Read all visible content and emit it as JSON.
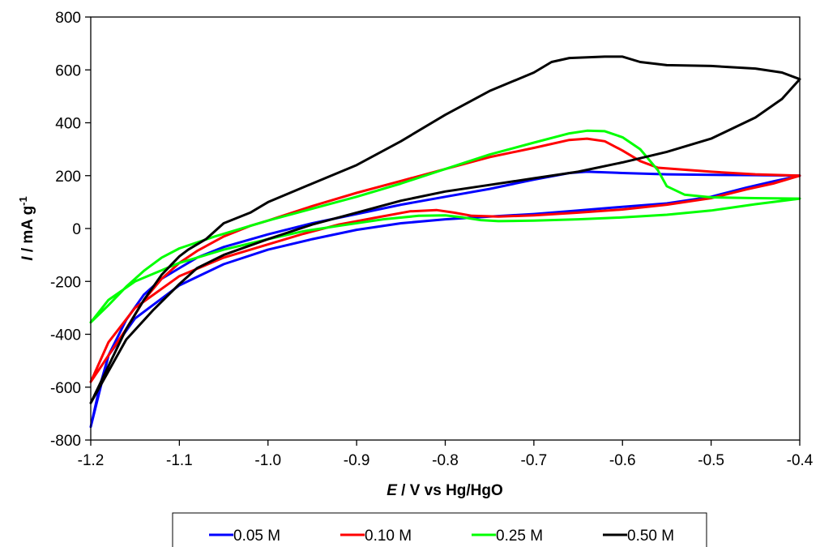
{
  "chart_data": {
    "type": "line",
    "xlabel_italic": "E",
    "xlabel_rest": " / V vs Hg/HgO",
    "ylabel_italic": "I",
    "ylabel_rest": " / mA g",
    "ylabel_sup": "-1",
    "xlim": [
      -1.2,
      -0.4
    ],
    "ylim": [
      -800,
      800
    ],
    "x_ticks": [
      -1.2,
      -1.1,
      -1.0,
      -0.9,
      -0.8,
      -0.7,
      -0.6,
      -0.5,
      -0.4
    ],
    "x_tick_labels": [
      "-1.2",
      "-1.1",
      "-1.0",
      "-0.9",
      "-0.8",
      "-0.7",
      "-0.6",
      "-0.5",
      "-0.4"
    ],
    "y_ticks": [
      -800,
      -600,
      -400,
      -200,
      0,
      200,
      400,
      600,
      800
    ],
    "y_tick_labels": [
      "-800",
      "-600",
      "-400",
      "-200",
      "0",
      "200",
      "400",
      "600",
      "800"
    ],
    "grid": false,
    "legend_position": "bottom",
    "series": [
      {
        "name": "0.05 M",
        "color": "#0000ff",
        "points": [
          [
            -1.2,
            -750
          ],
          [
            -1.19,
            -600
          ],
          [
            -1.18,
            -480
          ],
          [
            -1.16,
            -345
          ],
          [
            -1.14,
            -250
          ],
          [
            -1.12,
            -190
          ],
          [
            -1.1,
            -150
          ],
          [
            -1.08,
            -110
          ],
          [
            -1.05,
            -70
          ],
          [
            -1.0,
            -22
          ],
          [
            -0.95,
            20
          ],
          [
            -0.9,
            55
          ],
          [
            -0.85,
            90
          ],
          [
            -0.8,
            120
          ],
          [
            -0.75,
            150
          ],
          [
            -0.7,
            185
          ],
          [
            -0.66,
            210
          ],
          [
            -0.64,
            215
          ],
          [
            -0.6,
            210
          ],
          [
            -0.55,
            205
          ],
          [
            -0.5,
            203
          ],
          [
            -0.45,
            202
          ],
          [
            -0.4,
            200
          ],
          [
            -0.43,
            178
          ],
          [
            -0.46,
            155
          ],
          [
            -0.5,
            120
          ],
          [
            -0.55,
            95
          ],
          [
            -0.6,
            82
          ],
          [
            -0.65,
            68
          ],
          [
            -0.7,
            55
          ],
          [
            -0.75,
            45
          ],
          [
            -0.8,
            35
          ],
          [
            -0.85,
            20
          ],
          [
            -0.9,
            -5
          ],
          [
            -0.95,
            -40
          ],
          [
            -1.0,
            -80
          ],
          [
            -1.05,
            -135
          ],
          [
            -1.1,
            -215
          ],
          [
            -1.15,
            -340
          ],
          [
            -1.18,
            -480
          ],
          [
            -1.2,
            -750
          ]
        ]
      },
      {
        "name": "0.10 M",
        "color": "#ff0000",
        "points": [
          [
            -1.2,
            -580
          ],
          [
            -1.18,
            -480
          ],
          [
            -1.16,
            -380
          ],
          [
            -1.14,
            -270
          ],
          [
            -1.12,
            -190
          ],
          [
            -1.1,
            -130
          ],
          [
            -1.08,
            -85
          ],
          [
            -1.05,
            -30
          ],
          [
            -1.02,
            10
          ],
          [
            -1.0,
            30
          ],
          [
            -0.95,
            85
          ],
          [
            -0.9,
            135
          ],
          [
            -0.85,
            180
          ],
          [
            -0.8,
            225
          ],
          [
            -0.75,
            270
          ],
          [
            -0.7,
            305
          ],
          [
            -0.66,
            335
          ],
          [
            -0.64,
            340
          ],
          [
            -0.62,
            330
          ],
          [
            -0.6,
            295
          ],
          [
            -0.58,
            255
          ],
          [
            -0.56,
            230
          ],
          [
            -0.5,
            215
          ],
          [
            -0.45,
            205
          ],
          [
            -0.4,
            200
          ],
          [
            -0.43,
            170
          ],
          [
            -0.46,
            148
          ],
          [
            -0.5,
            115
          ],
          [
            -0.55,
            90
          ],
          [
            -0.6,
            72
          ],
          [
            -0.65,
            60
          ],
          [
            -0.7,
            50
          ],
          [
            -0.74,
            45
          ],
          [
            -0.77,
            48
          ],
          [
            -0.79,
            60
          ],
          [
            -0.81,
            70
          ],
          [
            -0.84,
            65
          ],
          [
            -0.88,
            40
          ],
          [
            -0.92,
            15
          ],
          [
            -0.96,
            -20
          ],
          [
            -1.0,
            -60
          ],
          [
            -1.05,
            -110
          ],
          [
            -1.1,
            -180
          ],
          [
            -1.15,
            -300
          ],
          [
            -1.18,
            -430
          ],
          [
            -1.2,
            -580
          ]
        ]
      },
      {
        "name": "0.25 M",
        "color": "#00ff00",
        "points": [
          [
            -1.2,
            -355
          ],
          [
            -1.18,
            -290
          ],
          [
            -1.16,
            -220
          ],
          [
            -1.14,
            -160
          ],
          [
            -1.12,
            -110
          ],
          [
            -1.1,
            -75
          ],
          [
            -1.06,
            -30
          ],
          [
            -1.02,
            10
          ],
          [
            -1.0,
            30
          ],
          [
            -0.95,
            75
          ],
          [
            -0.9,
            120
          ],
          [
            -0.85,
            170
          ],
          [
            -0.8,
            225
          ],
          [
            -0.75,
            280
          ],
          [
            -0.7,
            325
          ],
          [
            -0.66,
            360
          ],
          [
            -0.64,
            370
          ],
          [
            -0.62,
            368
          ],
          [
            -0.6,
            345
          ],
          [
            -0.58,
            300
          ],
          [
            -0.56,
            220
          ],
          [
            -0.55,
            160
          ],
          [
            -0.53,
            128
          ],
          [
            -0.5,
            118
          ],
          [
            -0.45,
            115
          ],
          [
            -0.4,
            113
          ],
          [
            -0.45,
            92
          ],
          [
            -0.5,
            68
          ],
          [
            -0.55,
            52
          ],
          [
            -0.6,
            42
          ],
          [
            -0.65,
            35
          ],
          [
            -0.7,
            30
          ],
          [
            -0.74,
            28
          ],
          [
            -0.76,
            32
          ],
          [
            -0.78,
            42
          ],
          [
            -0.8,
            50
          ],
          [
            -0.83,
            48
          ],
          [
            -0.87,
            35
          ],
          [
            -0.92,
            10
          ],
          [
            -0.96,
            -10
          ],
          [
            -1.0,
            -40
          ],
          [
            -1.05,
            -80
          ],
          [
            -1.1,
            -130
          ],
          [
            -1.15,
            -200
          ],
          [
            -1.18,
            -270
          ],
          [
            -1.2,
            -355
          ]
        ]
      },
      {
        "name": "0.50 M",
        "color": "#000000",
        "points": [
          [
            -1.2,
            -660
          ],
          [
            -1.18,
            -520
          ],
          [
            -1.16,
            -380
          ],
          [
            -1.14,
            -270
          ],
          [
            -1.12,
            -175
          ],
          [
            -1.1,
            -105
          ],
          [
            -1.09,
            -80
          ],
          [
            -1.07,
            -40
          ],
          [
            -1.05,
            20
          ],
          [
            -1.02,
            60
          ],
          [
            -1.0,
            100
          ],
          [
            -0.95,
            170
          ],
          [
            -0.9,
            240
          ],
          [
            -0.85,
            330
          ],
          [
            -0.8,
            430
          ],
          [
            -0.75,
            520
          ],
          [
            -0.7,
            590
          ],
          [
            -0.68,
            630
          ],
          [
            -0.66,
            645
          ],
          [
            -0.62,
            650
          ],
          [
            -0.6,
            650
          ],
          [
            -0.58,
            630
          ],
          [
            -0.55,
            618
          ],
          [
            -0.5,
            615
          ],
          [
            -0.45,
            605
          ],
          [
            -0.42,
            590
          ],
          [
            -0.4,
            565
          ],
          [
            -0.42,
            490
          ],
          [
            -0.45,
            420
          ],
          [
            -0.5,
            340
          ],
          [
            -0.55,
            290
          ],
          [
            -0.6,
            250
          ],
          [
            -0.65,
            215
          ],
          [
            -0.7,
            190
          ],
          [
            -0.75,
            165
          ],
          [
            -0.8,
            140
          ],
          [
            -0.85,
            105
          ],
          [
            -0.9,
            60
          ],
          [
            -0.95,
            15
          ],
          [
            -1.0,
            -40
          ],
          [
            -1.05,
            -100
          ],
          [
            -1.08,
            -150
          ],
          [
            -1.1,
            -210
          ],
          [
            -1.13,
            -310
          ],
          [
            -1.16,
            -420
          ],
          [
            -1.2,
            -660
          ]
        ]
      }
    ]
  }
}
